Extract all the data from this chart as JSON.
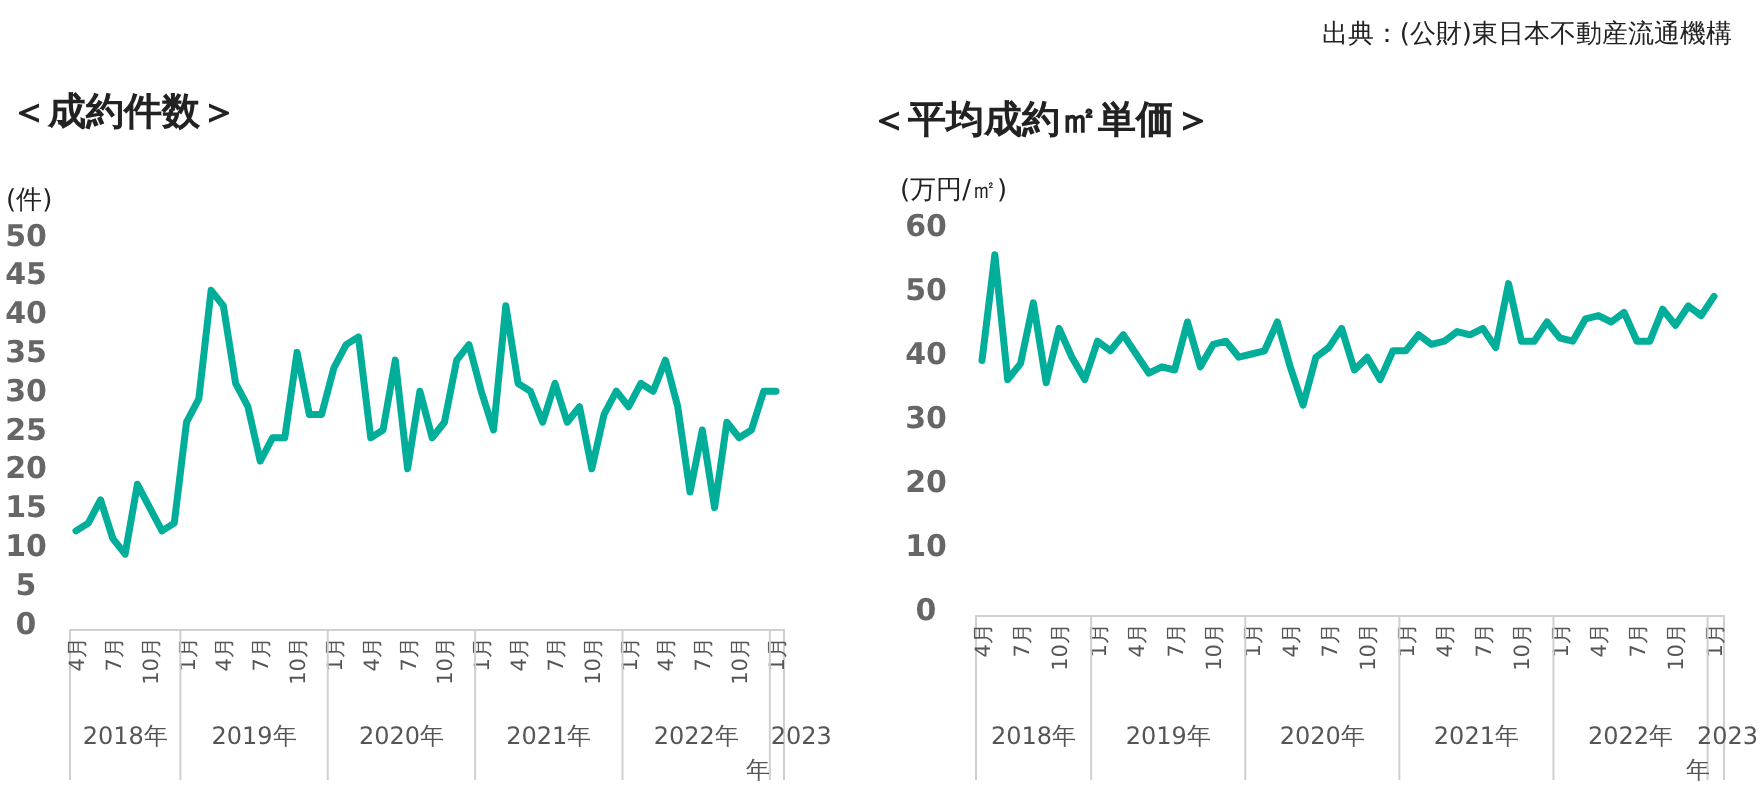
{
  "chart_data": [
    {
      "type": "line",
      "title": "＜成約件数＞",
      "ylabel": "(件)",
      "categories": [
        "4月",
        null,
        null,
        "7月",
        null,
        null,
        "10月",
        null,
        null,
        "1月",
        null,
        null,
        "4月",
        null,
        null,
        "7月",
        null,
        null,
        "10月",
        null,
        null,
        "1月",
        null,
        null,
        "4月",
        null,
        null,
        "7月",
        null,
        null,
        "10月",
        null,
        null,
        "1月",
        null,
        null,
        "4月",
        null,
        null,
        "7月",
        null,
        null,
        "10月",
        null,
        null,
        "1月",
        null,
        null,
        "4月",
        null,
        null,
        "7月",
        null,
        null,
        "10月",
        null,
        null,
        "1月"
      ],
      "series": [
        {
          "color": "#00ae99",
          "values": [
            12,
            13,
            16,
            11,
            9,
            18,
            15,
            12,
            13,
            26,
            29,
            43,
            41,
            31,
            28,
            21,
            24,
            24,
            35,
            27,
            27,
            33,
            36,
            37,
            24,
            25,
            34,
            20,
            30,
            24,
            26,
            34,
            36,
            30,
            25,
            41,
            31,
            30,
            26,
            31,
            26,
            28,
            20,
            27,
            30,
            28,
            31,
            30,
            34,
            28,
            17,
            25,
            15,
            26,
            24,
            25,
            30,
            30
          ]
        }
      ],
      "ylim": [
        0,
        50
      ],
      "yticks": [
        0,
        5,
        10,
        15,
        20,
        25,
        30,
        35,
        40,
        45,
        50
      ],
      "annotations": [
        "2018年",
        "2019年",
        "2020年",
        "2021年",
        "2022年",
        "2023年"
      ]
    },
    {
      "type": "line",
      "title": "＜平均成約㎡単価＞",
      "ylabel": "(万円/㎡)",
      "categories": [
        "4月",
        null,
        null,
        "7月",
        null,
        null,
        "10月",
        null,
        null,
        "1月",
        null,
        null,
        "4月",
        null,
        null,
        "7月",
        null,
        null,
        "10月",
        null,
        null,
        "1月",
        null,
        null,
        "4月",
        null,
        null,
        "7月",
        null,
        null,
        "10月",
        null,
        null,
        "1月",
        null,
        null,
        "4月",
        null,
        null,
        "7月",
        null,
        null,
        "10月",
        null,
        null,
        "1月",
        null,
        null,
        "4月",
        null,
        null,
        "7月",
        null,
        null,
        "10月",
        null,
        null,
        "1月"
      ],
      "series": [
        {
          "color": "#00ae99",
          "values": [
            39,
            55.5,
            36,
            38.5,
            48,
            35.5,
            44,
            39.5,
            36,
            42,
            40.5,
            43,
            40,
            37,
            38,
            37.5,
            45,
            38,
            41.5,
            42,
            39.5,
            40,
            40.5,
            45,
            38,
            32,
            39.5,
            41,
            44,
            37.5,
            39.5,
            36,
            40.5,
            40.5,
            43,
            41.5,
            42,
            43.5,
            43,
            44,
            41,
            51,
            42,
            42,
            45,
            42.5,
            42,
            45.5,
            46,
            45,
            46.5,
            42,
            42,
            47,
            44.5,
            47.5,
            46,
            49
          ]
        }
      ],
      "ylim": [
        0,
        60
      ],
      "yticks": [
        0,
        10,
        20,
        30,
        40,
        50,
        60
      ],
      "annotations": [
        "2018年",
        "2019年",
        "2020年",
        "2021年",
        "2022年",
        "2023年",
        "出典：(公財)東日本不動産流通機構"
      ]
    }
  ]
}
